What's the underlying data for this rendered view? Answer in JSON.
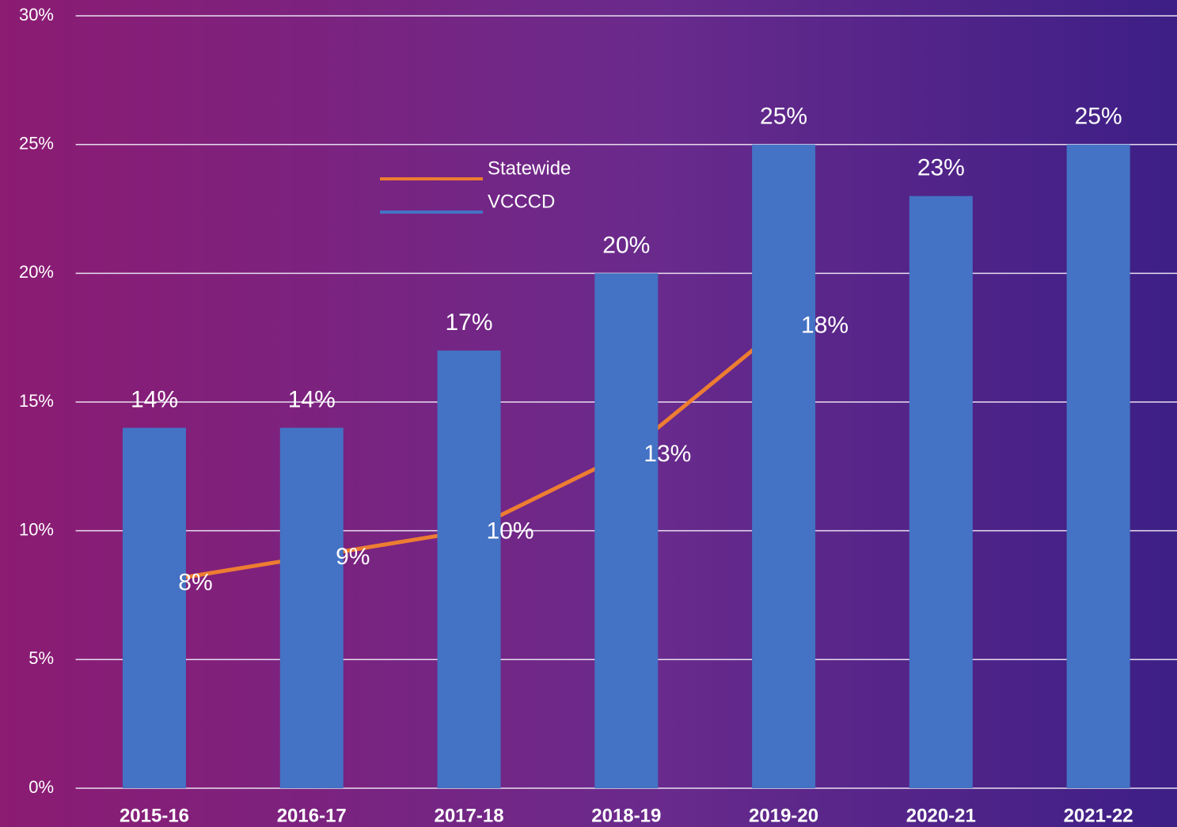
{
  "chart_data": {
    "type": "bar+line",
    "categories": [
      "2015-16",
      "2016-17",
      "2017-18",
      "2018-19",
      "2019-20",
      "2020-21",
      "2021-22"
    ],
    "series": [
      {
        "name": "Statewide",
        "type": "line",
        "color": "#ed7d31",
        "values": [
          8,
          9,
          10,
          13,
          18,
          null,
          null
        ],
        "value_labels": [
          "8%",
          "9%",
          "10%",
          "13%",
          "18%",
          null,
          null
        ]
      },
      {
        "name": "VCCCD",
        "type": "bar",
        "color": "#4472c4",
        "values": [
          14,
          14,
          17,
          20,
          25,
          23,
          25
        ],
        "value_labels": [
          "14%",
          "14%",
          "17%",
          "20%",
          "25%",
          "23%",
          "25%"
        ]
      }
    ],
    "ylim": [
      0,
      30
    ],
    "yticks": [
      {
        "value": 0,
        "label": "0%"
      },
      {
        "value": 5,
        "label": "5%"
      },
      {
        "value": 10,
        "label": "10%"
      },
      {
        "value": 15,
        "label": "15%"
      },
      {
        "value": 20,
        "label": "20%"
      },
      {
        "value": 25,
        "label": "25%"
      },
      {
        "value": 30,
        "label": "30%"
      }
    ],
    "grid": true
  }
}
